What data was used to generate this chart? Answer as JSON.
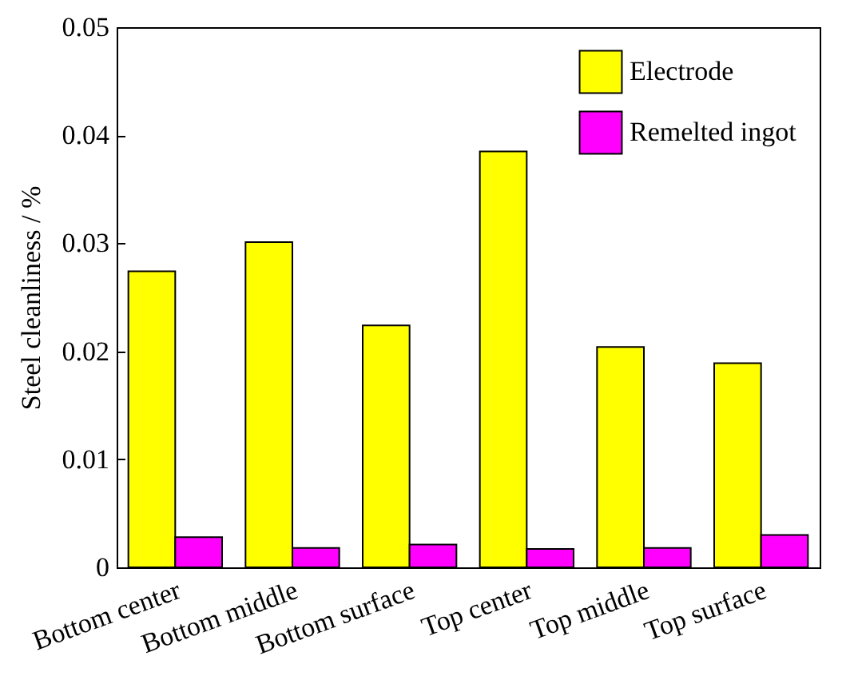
{
  "chart_data": {
    "type": "bar",
    "ylabel": "Steel cleanliness / %",
    "categories": [
      "Bottom center",
      "Bottom middle",
      "Bottom surface",
      "Top center",
      "Top middle",
      "Top surface"
    ],
    "series": [
      {
        "name": "Electrode",
        "color": "#ffff00",
        "values": [
          0.0274,
          0.0301,
          0.0224,
          0.0385,
          0.0204,
          0.0189
        ]
      },
      {
        "name": "Remelted ingot",
        "color": "#ff00ff",
        "values": [
          0.0028,
          0.0018,
          0.0021,
          0.0017,
          0.0018,
          0.003
        ]
      }
    ],
    "ylim": [
      0,
      0.05
    ],
    "yticks": [
      0,
      0.01,
      0.02,
      0.03,
      0.04,
      0.05
    ],
    "legend": "top right"
  }
}
